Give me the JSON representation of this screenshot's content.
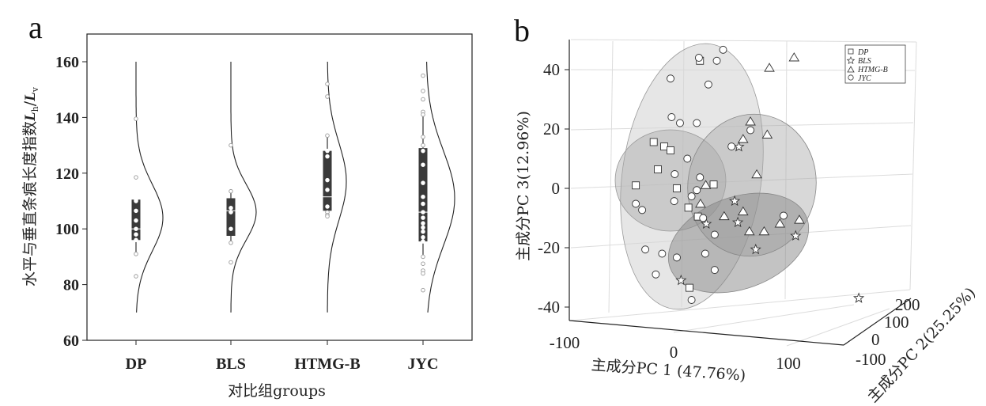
{
  "chart_data": [
    {
      "panel": "a",
      "type": "box",
      "xlabel": "对比组groups",
      "ylabel": "水平与垂直条痕长度指数",
      "ylabel_math": "L",
      "ylabel_sub1": "h",
      "ylabel_sep": "/",
      "ylabel_sub2": "v",
      "ylim": [
        60,
        170
      ],
      "yticks": [
        "60",
        "80",
        "100",
        "120",
        "140",
        "160"
      ],
      "categories": [
        "DP",
        "BLS",
        "HTMG-B",
        "JYC"
      ],
      "groups": [
        {
          "name": "DP",
          "q1": 96,
          "median": 100,
          "q3": 110.5,
          "whisker_low": 91,
          "whisker_high": 110.5,
          "density_mean": 104,
          "density_sd": 12,
          "points": [
            139.5,
            118.5,
            110.5,
            110,
            106.5,
            103,
            100,
            98,
            96,
            91,
            83
          ]
        },
        {
          "name": "BLS",
          "q1": 97.5,
          "median": 106.5,
          "q3": 111,
          "whisker_low": 95,
          "whisker_high": 113.5,
          "density_mean": 106,
          "density_sd": 10,
          "points": [
            130,
            113.5,
            107.5,
            106,
            100,
            95,
            88
          ]
        },
        {
          "name": "HTMG-B",
          "q1": 106.5,
          "median": 111.5,
          "q3": 128,
          "whisker_low": 104.5,
          "whisker_high": 133.5,
          "density_mean": 117,
          "density_sd": 14,
          "points": [
            152,
            147.5,
            133.5,
            128,
            126,
            117.5,
            114,
            108,
            106,
            105,
            104.5
          ]
        },
        {
          "name": "JYC",
          "q1": 95.5,
          "median": 106,
          "q3": 129,
          "whisker_low": 90,
          "whisker_high": 141,
          "density_mean": 111,
          "density_sd": 17,
          "points": [
            155,
            149.5,
            146.5,
            142,
            141,
            133,
            130,
            128,
            123,
            116.5,
            111.5,
            109,
            106,
            104,
            102,
            100.5,
            99,
            97,
            95.5,
            90,
            87.5,
            85,
            84,
            78
          ]
        }
      ]
    },
    {
      "panel": "b",
      "type": "scatter",
      "title": "",
      "xlabel": "主成分PC 1 (47.76%)",
      "ylabel": "主成分PC 3(12.96%)",
      "zlabel": "主成分PC 2(25.25%)",
      "xticks": [
        "-100",
        "0",
        "100"
      ],
      "yticks": [
        "40",
        "20",
        "0",
        "-20",
        "-40"
      ],
      "zticks": [
        "200",
        "100",
        "0",
        "-100"
      ],
      "legend_position": "top-right",
      "series": [
        {
          "name": "DP",
          "marker": "square",
          "points": [
            [
              25,
              43
            ],
            [
              -19,
              15.6
            ],
            [
              -9,
              14.1
            ],
            [
              -3,
              12.8
            ],
            [
              -15,
              6.4
            ],
            [
              -36,
              1
            ],
            [
              3,
              0
            ],
            [
              38,
              1.3
            ],
            [
              14,
              -6.5
            ],
            [
              23,
              -9.5
            ],
            [
              15,
              -33.5
            ]
          ]
        },
        {
          "name": "BLS",
          "marker": "star",
          "points": [
            [
              62,
              14
            ],
            [
              58,
              -4.3
            ],
            [
              61,
              -11.5
            ],
            [
              31,
              -12
            ],
            [
              78,
              -20.6
            ],
            [
              116,
              -16
            ],
            [
              7,
              -31
            ],
            [
              176,
              -37
            ]
          ]
        },
        {
          "name": "HTMG-B",
          "marker": "triangle",
          "points": [
            [
              114.5,
              44
            ],
            [
              91,
              40.5
            ],
            [
              73,
              22.4
            ],
            [
              89,
              18
            ],
            [
              66,
              16.5
            ],
            [
              79,
              4.6
            ],
            [
              30.5,
              1
            ],
            [
              25.5,
              -5.3
            ],
            [
              48,
              -9.5
            ],
            [
              66,
              -7.9
            ],
            [
              101,
              -12
            ],
            [
              119.5,
              -10.7
            ],
            [
              72,
              -14.6
            ],
            [
              86,
              -14.6
            ]
          ]
        },
        {
          "name": "JYC",
          "marker": "circle",
          "points": [
            [
              47,
              46.7
            ],
            [
              41,
              43
            ],
            [
              24,
              44
            ],
            [
              -3,
              37
            ],
            [
              33,
              35
            ],
            [
              -2,
              24
            ],
            [
              6,
              22
            ],
            [
              22,
              22
            ],
            [
              73,
              19.6
            ],
            [
              55,
              14.1
            ],
            [
              13,
              10
            ],
            [
              1,
              4.8
            ],
            [
              25,
              3.7
            ],
            [
              22,
              -0.6
            ],
            [
              17,
              -2.7
            ],
            [
              -36,
              -5.2
            ],
            [
              -30,
              -7.3
            ],
            [
              0.5,
              -4.3
            ],
            [
              28,
              -10
            ],
            [
              39,
              -15.6
            ],
            [
              104.5,
              -9.2
            ],
            [
              -27,
              -20.6
            ],
            [
              -11,
              -22
            ],
            [
              3,
              -23.3
            ],
            [
              30,
              -22
            ],
            [
              39,
              -27.5
            ],
            [
              -17,
              -29
            ],
            [
              17,
              -37.6
            ]
          ]
        }
      ]
    }
  ],
  "panel_labels": [
    "a",
    "b"
  ],
  "colors": {
    "box": "#3a3a3a",
    "point_stroke": "#9a9a9a",
    "axis": "#222222",
    "grid": "#d8d8d8"
  }
}
